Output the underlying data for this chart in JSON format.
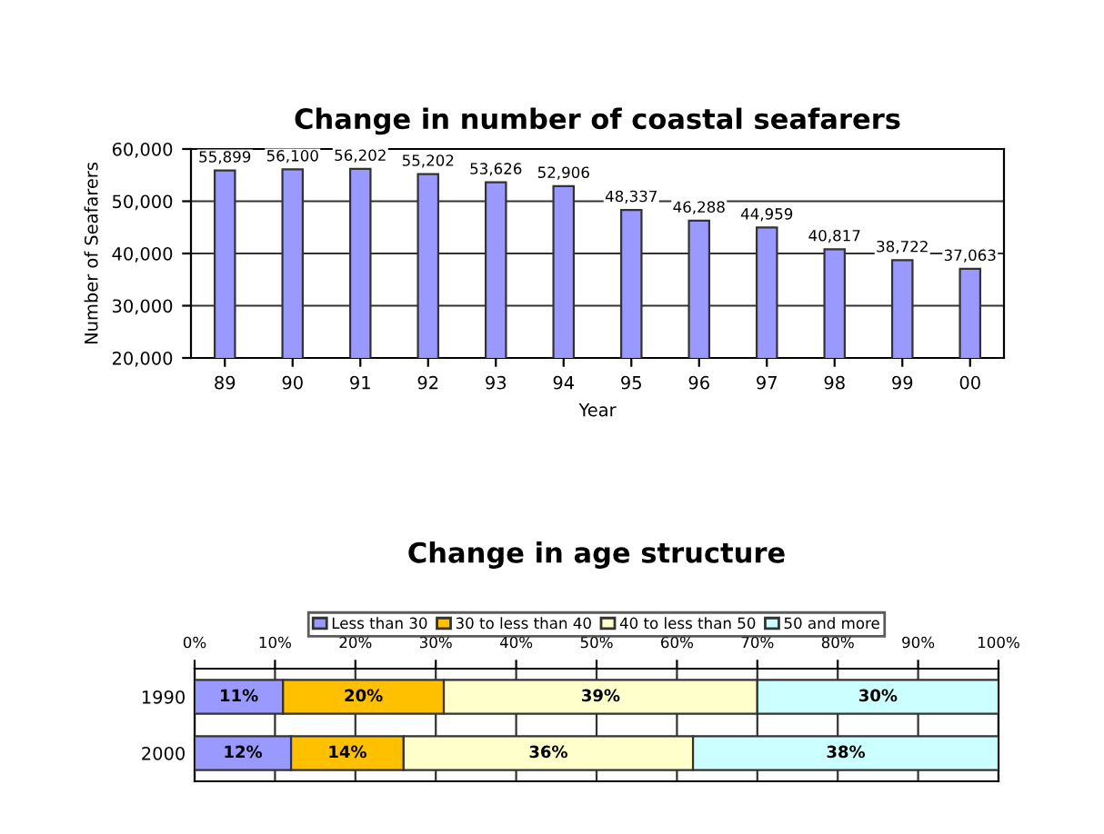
{
  "chart_data": [
    {
      "type": "bar",
      "title": "Change in number of coastal seafarers",
      "xlabel": "Year",
      "ylabel": "Number of Seafarers",
      "categories": [
        "89",
        "90",
        "91",
        "92",
        "93",
        "94",
        "95",
        "96",
        "97",
        "98",
        "99",
        "00"
      ],
      "series": [
        {
          "color": "#9999ff",
          "values": [
            55899,
            56100,
            56202,
            55202,
            53626,
            52906,
            48337,
            46288,
            44959,
            40817,
            38722,
            37063
          ],
          "value_labels": [
            "55,899",
            "56,100",
            "56,202",
            "55,202",
            "53,626",
            "52,906",
            "48,337",
            "46,288",
            "44,959",
            "40,817",
            "38,722",
            "37,063"
          ]
        }
      ],
      "ylim": [
        20000,
        60000
      ],
      "yticks": [
        {
          "value": 20000,
          "label": "20,000"
        },
        {
          "value": 30000,
          "label": "30,000"
        },
        {
          "value": 40000,
          "label": "40,000"
        },
        {
          "value": 50000,
          "label": "50,000"
        },
        {
          "value": 60000,
          "label": "60,000"
        }
      ],
      "grid": "y",
      "legend": false
    },
    {
      "type": "bar",
      "title": "Change in age structure",
      "orientation": "horizontal",
      "stacked": true,
      "categories": [
        "1990",
        "2000"
      ],
      "series": [
        {
          "name": "Less than 30",
          "color": "#9999ff",
          "values": [
            11,
            12
          ],
          "value_labels": [
            "11%",
            "12%"
          ]
        },
        {
          "name": "30 to less than 40",
          "color": "#ffc000",
          "values": [
            20,
            14
          ],
          "value_labels": [
            "20%",
            "14%"
          ]
        },
        {
          "name": "40 to less than 50",
          "color": "#ffffcc",
          "values": [
            39,
            36
          ],
          "value_labels": [
            "39%",
            "36%"
          ]
        },
        {
          "name": "50 and more",
          "color": "#ccffff",
          "values": [
            30,
            38
          ],
          "value_labels": [
            "30%",
            "38%"
          ]
        }
      ],
      "xlim": [
        0,
        100
      ],
      "xticks": [
        {
          "value": 0,
          "label": "0%"
        },
        {
          "value": 10,
          "label": "10%"
        },
        {
          "value": 20,
          "label": "20%"
        },
        {
          "value": 30,
          "label": "30%"
        },
        {
          "value": 40,
          "label": "40%"
        },
        {
          "value": 50,
          "label": "50%"
        },
        {
          "value": 60,
          "label": "60%"
        },
        {
          "value": 70,
          "label": "70%"
        },
        {
          "value": 80,
          "label": "80%"
        },
        {
          "value": 90,
          "label": "90%"
        },
        {
          "value": 100,
          "label": "100%"
        }
      ],
      "grid": "x",
      "legend": "top"
    }
  ]
}
